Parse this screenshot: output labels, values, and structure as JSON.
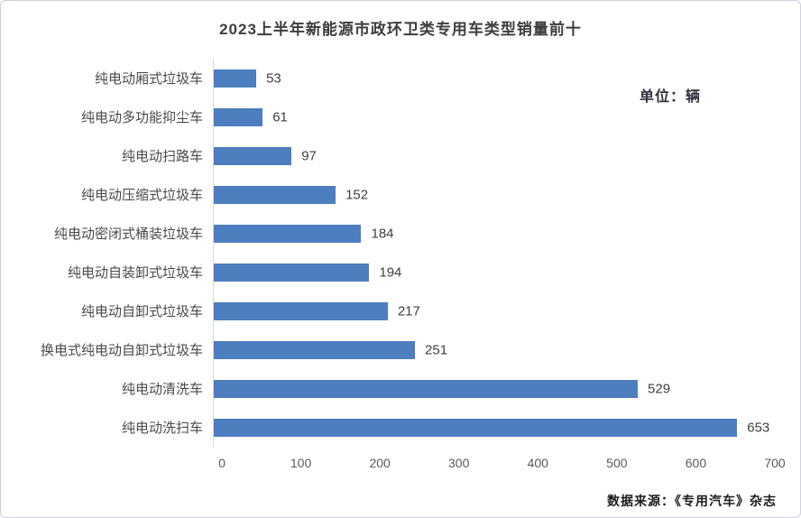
{
  "page": {
    "title": "2023上半年新能源市政环卫类专用车类型销量前十",
    "unit_label": "单位：辆",
    "source_note": "数据来源：《专用汽车》杂志"
  },
  "chart_data": {
    "type": "bar",
    "orientation": "horizontal",
    "title": "2023上半年新能源市政环卫类专用车类型销量前十",
    "categories": [
      "纯电动厢式垃圾车",
      "纯电动多功能抑尘车",
      "纯电动扫路车",
      "纯电动压缩式垃圾车",
      "纯电动密闭式桶装垃圾车",
      "纯电动自装卸式垃圾车",
      "纯电动自卸式垃圾车",
      "换电式纯电动自卸式垃圾车",
      "纯电动清洗车",
      "纯电动洗扫车"
    ],
    "values": [
      53,
      61,
      97,
      152,
      184,
      194,
      217,
      251,
      529,
      653
    ],
    "xlabel": "",
    "ylabel": "",
    "xlim": [
      0,
      700
    ],
    "x_ticks": [
      0,
      100,
      200,
      300,
      400,
      500,
      600,
      700
    ],
    "grid": false,
    "legend": false,
    "value_labels": true,
    "bar_color": "#4d7ebf"
  },
  "colors": {
    "bar": "#4d7ebf",
    "title_text": "#3d3d3d",
    "axis_text": "#595959",
    "value_text": "#404040",
    "axis_line": "#d9d9d9",
    "frame_border": "#ccd0e2"
  }
}
